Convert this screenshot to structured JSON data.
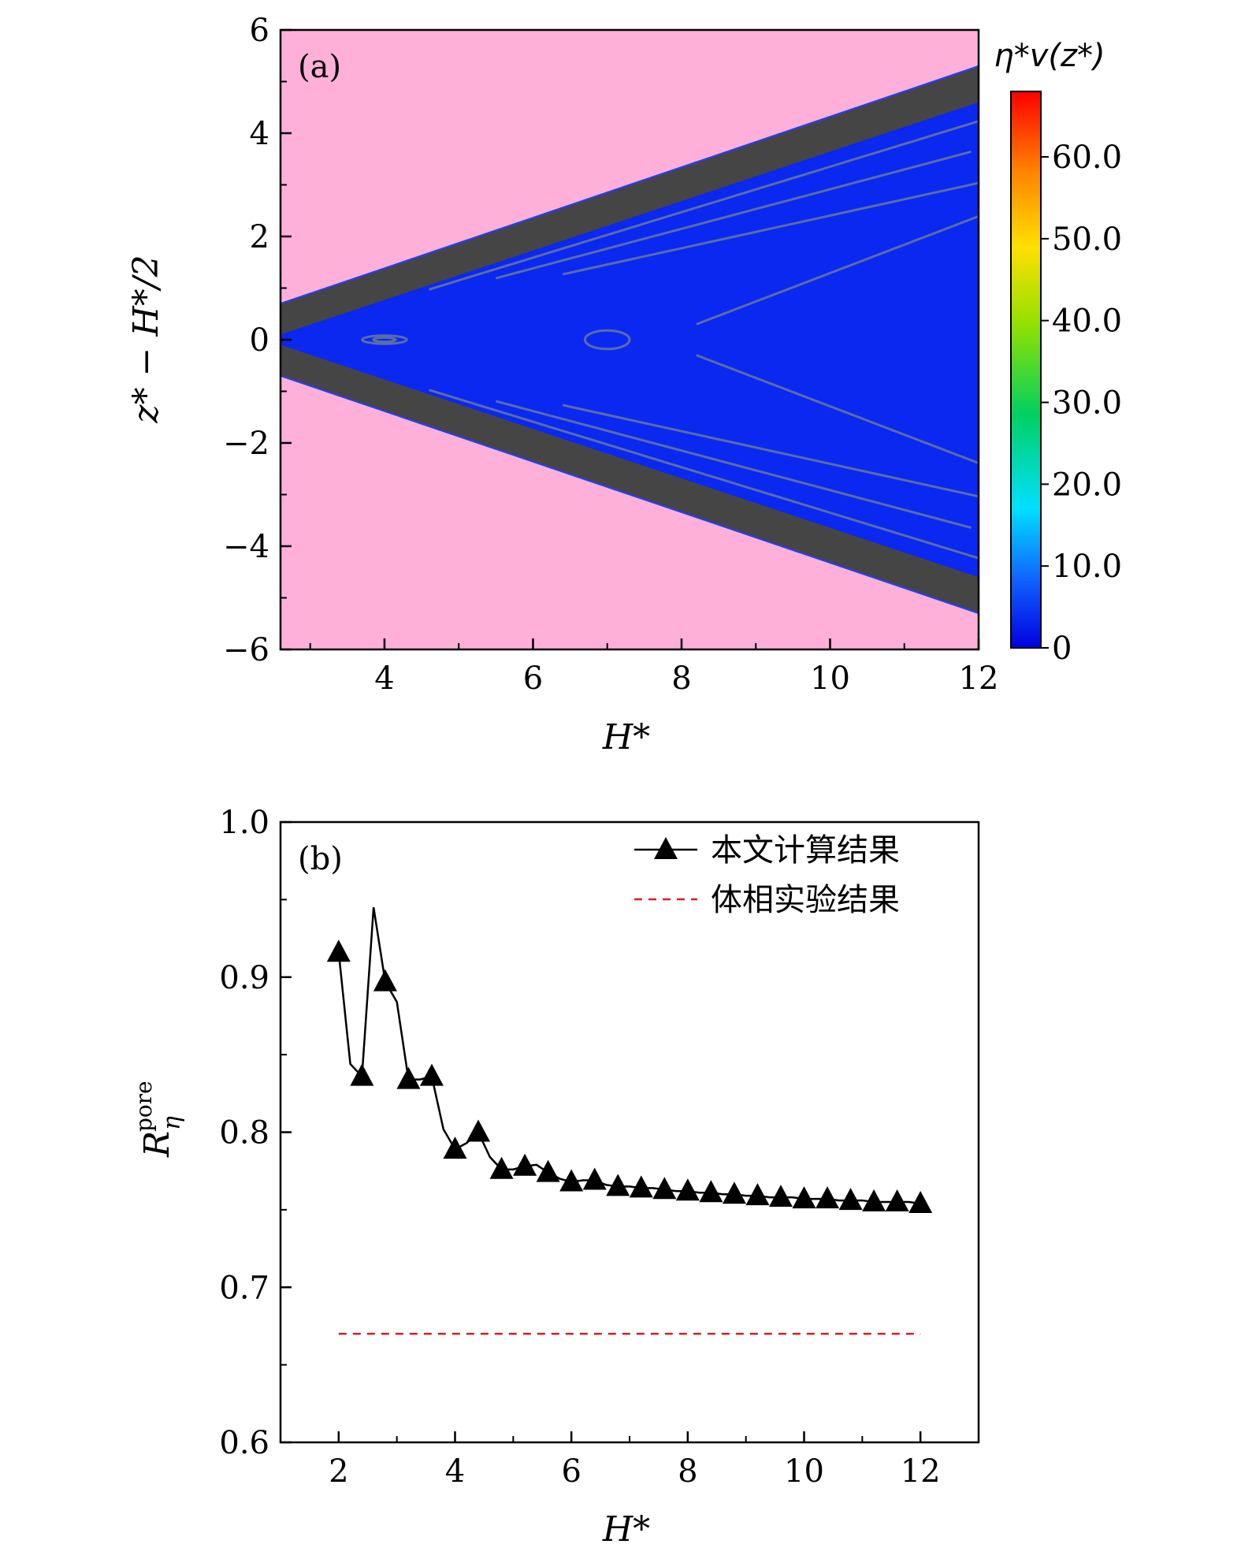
{
  "chart_data": [
    {
      "type": "heatmap",
      "panel_label": "(a)",
      "xlabel": "H*",
      "ylabel": "z* − H*/2",
      "colorbar_title": "η*v(z*)",
      "xlim": [
        2.6,
        12
      ],
      "ylim": [
        -6,
        6
      ],
      "x_ticks": [
        4,
        6,
        8,
        10,
        12
      ],
      "x_tick_labels": [
        "4",
        "6",
        "8",
        "10",
        "12"
      ],
      "y_ticks": [
        6,
        4,
        2,
        0,
        -2,
        -4,
        -6
      ],
      "y_tick_labels": [
        "6",
        "4",
        "2",
        "0",
        "−2",
        "−4",
        "−6"
      ],
      "colorbar_range": [
        0,
        68
      ],
      "colorbar_ticks": [
        0,
        10,
        20,
        30,
        40,
        50,
        60
      ],
      "colorbar_tick_labels": [
        "0",
        "10.0",
        "20.0",
        "30.0",
        "40.0",
        "50.0",
        "60.0"
      ],
      "wedge": {
        "h_start": 2.6,
        "h_end": 12,
        "outer_half_width_start": 0.7,
        "outer_half_width_end": 5.3,
        "inner_half_width_start": 0.1,
        "inner_half_width_end": 4.6
      },
      "colors": {
        "outside": "#ffb0d8",
        "wall_layer": "#454545",
        "interior": "#0a28f0",
        "contour": "#5a6ca8"
      }
    },
    {
      "type": "line",
      "panel_label": "(b)",
      "xlabel": "H*",
      "ylabel": "R_η^pore",
      "ylabel_main": "R",
      "ylabel_sub": "η",
      "ylabel_sup": "pore",
      "xlim": [
        1,
        13
      ],
      "ylim": [
        0.6,
        1.0
      ],
      "x_ticks": [
        2,
        4,
        6,
        8,
        10,
        12
      ],
      "x_tick_labels": [
        "2",
        "4",
        "6",
        "8",
        "10",
        "12"
      ],
      "y_ticks": [
        0.6,
        0.7,
        0.8,
        0.9,
        1.0
      ],
      "y_tick_labels": [
        "0.6",
        "0.7",
        "0.8",
        "0.9",
        "1.0"
      ],
      "series": [
        {
          "name": "本文计算结果",
          "style": "line-triangle",
          "color": "#000000",
          "x": [
            2.0,
            2.2,
            2.4,
            2.6,
            2.8,
            3.0,
            3.2,
            3.4,
            3.6,
            3.8,
            4.0,
            4.2,
            4.4,
            4.6,
            4.8,
            5.0,
            5.2,
            5.4,
            5.6,
            5.8,
            6.0,
            6.2,
            6.4,
            6.6,
            6.8,
            7.0,
            7.2,
            7.4,
            7.6,
            7.8,
            8.0,
            8.2,
            8.4,
            8.6,
            8.8,
            9.0,
            9.2,
            9.4,
            9.6,
            9.8,
            10.0,
            10.2,
            10.4,
            10.6,
            10.8,
            11.0,
            11.2,
            11.4,
            11.6,
            11.8,
            12.0
          ],
          "y": [
            0.916,
            0.844,
            0.836,
            0.945,
            0.897,
            0.884,
            0.834,
            0.834,
            0.836,
            0.802,
            0.789,
            0.793,
            0.8,
            0.784,
            0.776,
            0.776,
            0.778,
            0.779,
            0.774,
            0.77,
            0.768,
            0.769,
            0.769,
            0.766,
            0.765,
            0.765,
            0.764,
            0.764,
            0.763,
            0.762,
            0.762,
            0.761,
            0.761,
            0.76,
            0.76,
            0.759,
            0.759,
            0.758,
            0.758,
            0.758,
            0.757,
            0.757,
            0.757,
            0.756,
            0.756,
            0.756,
            0.755,
            0.755,
            0.755,
            0.755,
            0.754
          ],
          "marker_x": [
            2.0,
            2.4,
            2.8,
            3.2,
            3.6,
            4.0,
            4.4,
            4.8,
            5.2,
            5.6,
            6.0,
            6.4,
            6.8,
            7.2,
            7.6,
            8.0,
            8.4,
            8.8,
            9.2,
            9.6,
            10.0,
            10.4,
            10.8,
            11.2,
            11.6,
            12.0
          ],
          "marker_y": [
            0.916,
            0.836,
            0.897,
            0.834,
            0.836,
            0.789,
            0.8,
            0.776,
            0.778,
            0.774,
            0.768,
            0.769,
            0.765,
            0.764,
            0.763,
            0.762,
            0.761,
            0.76,
            0.759,
            0.758,
            0.757,
            0.757,
            0.756,
            0.755,
            0.755,
            0.754
          ]
        },
        {
          "name": "体相实验结果",
          "style": "dashed",
          "color": "#d42020",
          "x": [
            2.0,
            12.0
          ],
          "y": [
            0.67,
            0.67
          ]
        }
      ],
      "legend_position": "top-right"
    }
  ]
}
